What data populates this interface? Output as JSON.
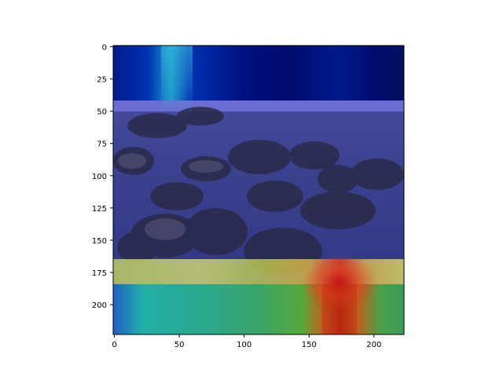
{
  "image": {
    "subject": "rats-photo-with-heatmap-overlay",
    "colormap": "jet"
  },
  "axes": {
    "x_range": [
      0,
      224
    ],
    "y_range": [
      0,
      224
    ],
    "x_ticks": [
      0,
      50,
      100,
      150,
      200
    ],
    "y_ticks": [
      0,
      25,
      50,
      75,
      100,
      125,
      150,
      175,
      200
    ],
    "y_inverted": true
  }
}
